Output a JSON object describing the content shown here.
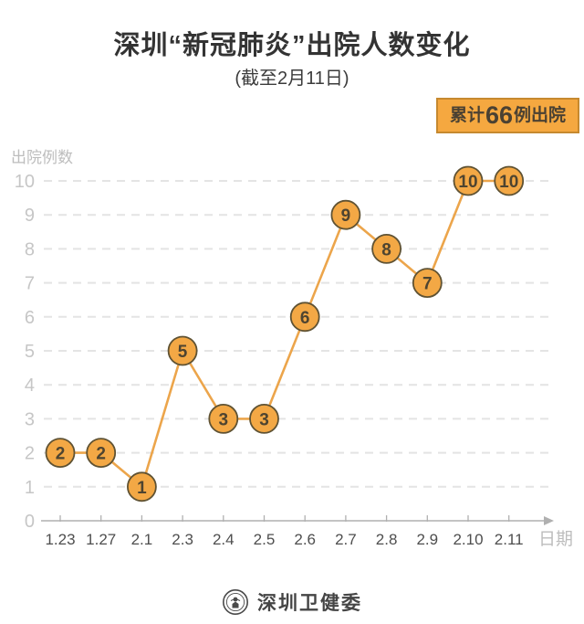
{
  "header": {
    "title": "深圳“新冠肺炎”出院人数变化",
    "subtitle": "(截至2月11日)",
    "title_color": "#333333",
    "badge": {
      "prefix": "累计",
      "count": "66",
      "suffix": "例出院",
      "bg": "#F5A840",
      "border": "#C6892F",
      "text_color": "#4B4132"
    }
  },
  "chart_data": {
    "type": "line",
    "title": "深圳“新冠肺炎”出院人数变化",
    "subtitle": "(截至2月11日)",
    "categories": [
      "1.23",
      "1.27",
      "2.1",
      "2.3",
      "2.4",
      "2.5",
      "2.6",
      "2.7",
      "2.8",
      "2.9",
      "2.10",
      "2.11"
    ],
    "values": [
      2,
      2,
      1,
      5,
      3,
      3,
      6,
      9,
      8,
      7,
      10,
      10
    ],
    "ylabel": "出院例数",
    "xlabel": "日期",
    "ylim": [
      0,
      10
    ],
    "yticks": [
      0,
      1,
      2,
      3,
      4,
      5,
      6,
      7,
      8,
      9,
      10
    ],
    "grid": true,
    "grid_style": "dashed",
    "legend": "none",
    "colors": {
      "line": "#ECA54B",
      "marker_fill": "#F3A845",
      "marker_border": "#5F5233",
      "marker_text": "#4E4430",
      "grid": "#E4E4E4",
      "axis": "#B0B0B0",
      "y_tick_text": "#C6C6C6",
      "x_tick_text": "#4E4E4E",
      "axis_title": "#BDBDBD"
    }
  },
  "footer": {
    "org": "深圳卫健委"
  }
}
